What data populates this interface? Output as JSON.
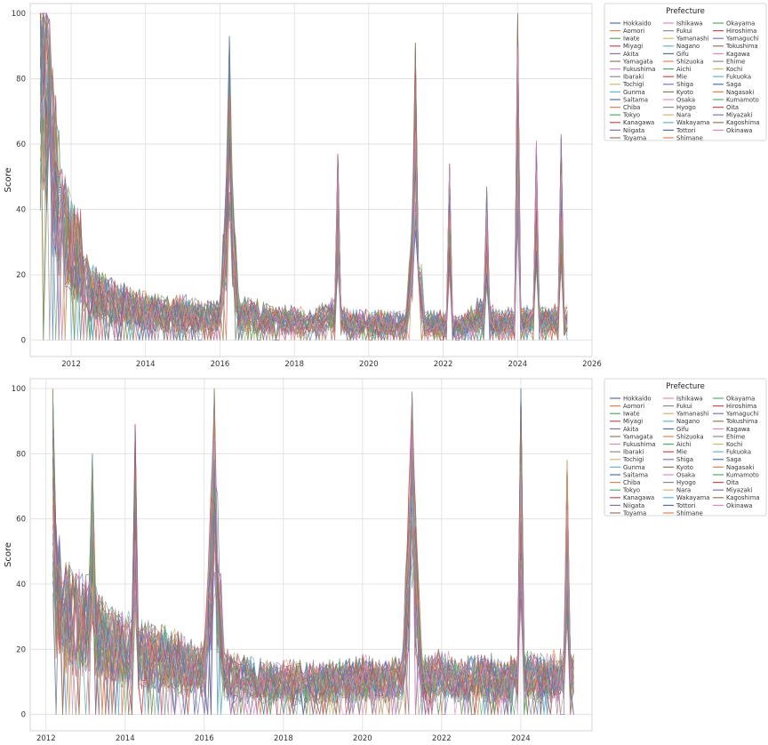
{
  "chart_data": [
    {
      "type": "line",
      "xlabel": "",
      "ylabel": "Score",
      "xlim": [
        2010.9,
        2026.0
      ],
      "ylim": [
        -5,
        103
      ],
      "xticks": [
        "2012",
        "2014",
        "2016",
        "2018",
        "2020",
        "2022",
        "2024",
        "2026"
      ],
      "yticks": [
        "0",
        "20",
        "40",
        "60",
        "80",
        "100"
      ],
      "x_start": 2011.17,
      "x_end": 2025.33,
      "legend_title": "Prefecture",
      "legend_location": "outside upper right",
      "grid": true,
      "approx_envelope": {
        "x": [
          2011.17,
          2011.25,
          2011.5,
          2011.75,
          2012.0,
          2012.25,
          2012.5,
          2013.0,
          2013.5,
          2014.0,
          2014.5,
          2015.0,
          2015.5,
          2016.0,
          2016.25,
          2016.5,
          2017.0,
          2017.5,
          2018.0,
          2018.5,
          2019.0,
          2019.5,
          2020.0,
          2020.5,
          2021.0,
          2021.25,
          2021.5,
          2022.0,
          2022.5,
          2023.0,
          2023.5,
          2024.0,
          2024.5,
          2025.0,
          2025.33
        ],
        "median": [
          85,
          90,
          55,
          35,
          28,
          25,
          15,
          12,
          10,
          9,
          8,
          8,
          7,
          7,
          45,
          8,
          7,
          6,
          6,
          5,
          8,
          5,
          5,
          5,
          5,
          35,
          5,
          5,
          4,
          8,
          5,
          6,
          6,
          6,
          6
        ]
      },
      "peaks": [
        {
          "x": 2011.2,
          "y": 100
        },
        {
          "x": 2016.25,
          "y": 93
        },
        {
          "x": 2019.2,
          "y": 57
        },
        {
          "x": 2021.25,
          "y": 91
        },
        {
          "x": 2022.2,
          "y": 54
        },
        {
          "x": 2023.2,
          "y": 47
        },
        {
          "x": 2024.0,
          "y": 100
        },
        {
          "x": 2024.5,
          "y": 61
        },
        {
          "x": 2025.2,
          "y": 63
        }
      ]
    },
    {
      "type": "line",
      "xlabel": "",
      "ylabel": "Score",
      "xlim": [
        2011.6,
        2025.8
      ],
      "ylim": [
        -5,
        103
      ],
      "xticks": [
        "2012",
        "2014",
        "2016",
        "2018",
        "2020",
        "2022",
        "2024"
      ],
      "yticks": [
        "0",
        "20",
        "40",
        "60",
        "80",
        "100"
      ],
      "x_start": 2012.17,
      "x_end": 2025.33,
      "legend_title": "Prefecture",
      "legend_location": "outside upper right",
      "grid": true,
      "approx_envelope": {
        "x": [
          2012.17,
          2012.5,
          2013.0,
          2013.5,
          2014.0,
          2014.5,
          2015.0,
          2015.5,
          2016.0,
          2016.25,
          2016.5,
          2017.0,
          2017.5,
          2018.0,
          2018.5,
          2019.0,
          2019.5,
          2020.0,
          2020.5,
          2021.0,
          2021.25,
          2021.5,
          2022.0,
          2022.5,
          2023.0,
          2023.5,
          2024.0,
          2024.5,
          2025.0,
          2025.33
        ],
        "median": [
          40,
          30,
          28,
          22,
          20,
          18,
          17,
          15,
          14,
          60,
          12,
          11,
          10,
          10,
          10,
          10,
          10,
          11,
          10,
          11,
          60,
          11,
          12,
          10,
          12,
          10,
          12,
          11,
          12,
          12
        ]
      },
      "peaks": [
        {
          "x": 2012.2,
          "y": 100
        },
        {
          "x": 2013.2,
          "y": 80
        },
        {
          "x": 2014.25,
          "y": 89
        },
        {
          "x": 2016.25,
          "y": 100
        },
        {
          "x": 2021.25,
          "y": 99
        },
        {
          "x": 2024.0,
          "y": 100
        },
        {
          "x": 2025.2,
          "y": 78
        }
      ]
    }
  ],
  "legend": {
    "title": "Prefecture",
    "entries": [
      {
        "name": "Hokkaido",
        "color": "#4c72b0"
      },
      {
        "name": "Aomori",
        "color": "#dd8452"
      },
      {
        "name": "Iwate",
        "color": "#55a868"
      },
      {
        "name": "Miyagi",
        "color": "#c44e52"
      },
      {
        "name": "Akita",
        "color": "#8172b3"
      },
      {
        "name": "Yamagata",
        "color": "#937860"
      },
      {
        "name": "Fukushima",
        "color": "#da8bc3"
      },
      {
        "name": "Ibaraki",
        "color": "#8c8c8c"
      },
      {
        "name": "Tochigi",
        "color": "#ccb974"
      },
      {
        "name": "Gunma",
        "color": "#64b5cd"
      },
      {
        "name": "Saitama",
        "color": "#4c72b0"
      },
      {
        "name": "Chiba",
        "color": "#dd8452"
      },
      {
        "name": "Tokyo",
        "color": "#55a868"
      },
      {
        "name": "Kanagawa",
        "color": "#c44e52"
      },
      {
        "name": "Niigata",
        "color": "#8172b3"
      },
      {
        "name": "Toyama",
        "color": "#937860"
      },
      {
        "name": "Ishikawa",
        "color": "#da8bc3"
      },
      {
        "name": "Fukui",
        "color": "#8c8c8c"
      },
      {
        "name": "Yamanashi",
        "color": "#ccb974"
      },
      {
        "name": "Nagano",
        "color": "#64b5cd"
      },
      {
        "name": "Gifu",
        "color": "#4c72b0"
      },
      {
        "name": "Shizuoka",
        "color": "#dd8452"
      },
      {
        "name": "Aichi",
        "color": "#55a868"
      },
      {
        "name": "Mie",
        "color": "#c44e52"
      },
      {
        "name": "Shiga",
        "color": "#8172b3"
      },
      {
        "name": "Kyoto",
        "color": "#937860"
      },
      {
        "name": "Osaka",
        "color": "#da8bc3"
      },
      {
        "name": "Hyogo",
        "color": "#8c8c8c"
      },
      {
        "name": "Nara",
        "color": "#ccb974"
      },
      {
        "name": "Wakayama",
        "color": "#64b5cd"
      },
      {
        "name": "Tottori",
        "color": "#4c72b0"
      },
      {
        "name": "Shimane",
        "color": "#dd8452"
      },
      {
        "name": "Okayama",
        "color": "#55a868"
      },
      {
        "name": "Hiroshima",
        "color": "#c44e52"
      },
      {
        "name": "Yamaguchi",
        "color": "#8172b3"
      },
      {
        "name": "Tokushima",
        "color": "#937860"
      },
      {
        "name": "Kagawa",
        "color": "#da8bc3"
      },
      {
        "name": "Ehime",
        "color": "#8c8c8c"
      },
      {
        "name": "Kochi",
        "color": "#ccb974"
      },
      {
        "name": "Fukuoka",
        "color": "#64b5cd"
      },
      {
        "name": "Saga",
        "color": "#4c72b0"
      },
      {
        "name": "Nagasaki",
        "color": "#dd8452"
      },
      {
        "name": "Kumamoto",
        "color": "#55a868"
      },
      {
        "name": "Oita",
        "color": "#c44e52"
      },
      {
        "name": "Miyazaki",
        "color": "#8172b3"
      },
      {
        "name": "Kagoshima",
        "color": "#937860"
      },
      {
        "name": "Okinawa",
        "color": "#da8bc3"
      }
    ]
  },
  "colors": {
    "grid": "#dddddd",
    "frame": "#cccccc",
    "palette": [
      "#4c72b0",
      "#dd8452",
      "#55a868",
      "#c44e52",
      "#8172b3",
      "#937860",
      "#da8bc3",
      "#8c8c8c",
      "#ccb974",
      "#64b5cd"
    ]
  }
}
